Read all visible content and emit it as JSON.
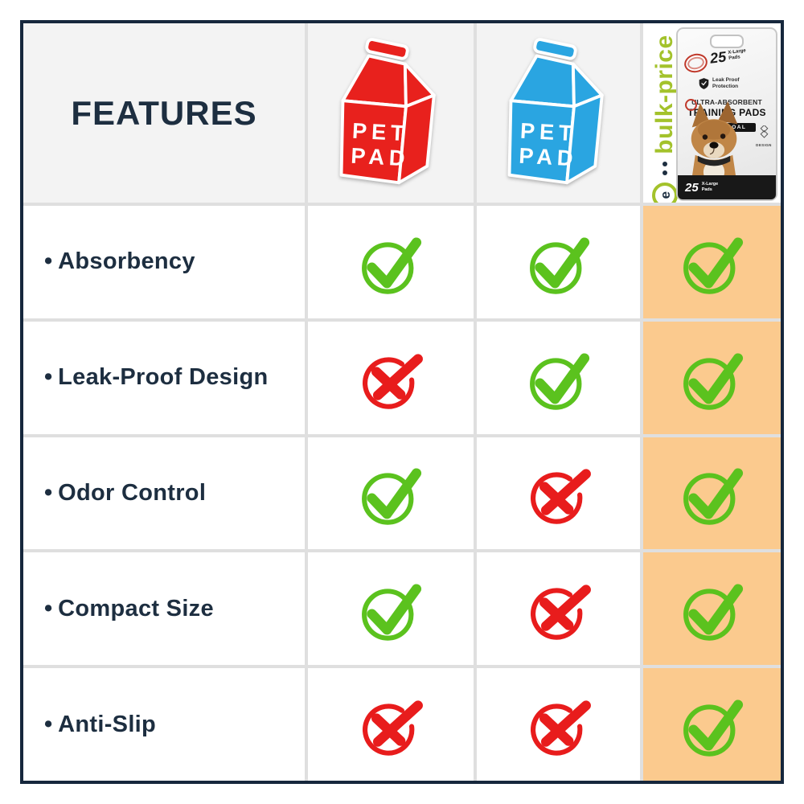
{
  "colors": {
    "border_navy": "#16273c",
    "text_navy": "#1d2e40",
    "header_bg": "#f3f3f3",
    "cell_bg": "#ffffff",
    "grid_line": "#dfdfdf",
    "highlight_orange": "#fbca8e",
    "check_green": "#5bc21e",
    "cross_red": "#e81c1c",
    "carton_red": "#e8211d",
    "carton_blue": "#2aa5e1",
    "brand_green": "#a3c22b"
  },
  "header": {
    "features_label": "FEATURES",
    "carton_red": {
      "line1": "PET",
      "line2": "PAD"
    },
    "carton_blue": {
      "line1": "PET",
      "line2": "PAD"
    },
    "product": {
      "brand": "bulk-price",
      "logo_letter": "e",
      "pack_count": "25",
      "pack_size": "X-Large",
      "pack_unit": "Pads",
      "protection1": "Leak Proof",
      "protection2": "Protection",
      "title1": "ULTRA-ABSORBENT",
      "title2": "TRAINING PADS",
      "variant": "CHARCOAL",
      "design_label": "DESIGN",
      "bottom_count": "25",
      "bottom_size": "X-Large",
      "bottom_unit": "Pads"
    }
  },
  "bullet": "•",
  "rows": [
    {
      "feature": "Absorbency",
      "marks": [
        "check",
        "check",
        "check"
      ]
    },
    {
      "feature": "Leak-Proof Design",
      "marks": [
        "cross",
        "check",
        "check"
      ]
    },
    {
      "feature": "Odor Control",
      "marks": [
        "check",
        "cross",
        "check"
      ]
    },
    {
      "feature": "Compact Size",
      "marks": [
        "check",
        "cross",
        "check"
      ]
    },
    {
      "feature": "Anti-Slip",
      "marks": [
        "cross",
        "cross",
        "check"
      ]
    }
  ],
  "chart_data": {
    "type": "table",
    "title": "FEATURES",
    "columns": [
      "FEATURES",
      "PET PAD (red carton)",
      "PET PAD (blue carton)",
      "bulk-price Ultra-Absorbent Training Pads (Charcoal, 25 X-Large Pads)"
    ],
    "rows": [
      {
        "feature": "Absorbency",
        "values": [
          true,
          true,
          true
        ]
      },
      {
        "feature": "Leak-Proof Design",
        "values": [
          false,
          true,
          true
        ]
      },
      {
        "feature": "Odor Control",
        "values": [
          true,
          false,
          true
        ]
      },
      {
        "feature": "Compact Size",
        "values": [
          true,
          false,
          true
        ]
      },
      {
        "feature": "Anti-Slip",
        "values": [
          false,
          false,
          true
        ]
      }
    ],
    "legend": {
      "check": "feature present (green check)",
      "cross": "feature absent (red cross)"
    },
    "highlight_column": 3
  }
}
